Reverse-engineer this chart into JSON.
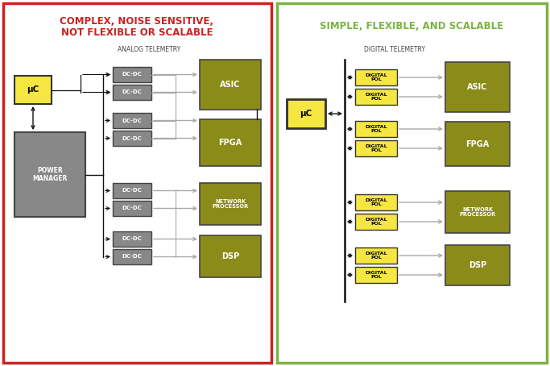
{
  "fig_width": 6.83,
  "fig_height": 4.54,
  "dpi": 100,
  "left_border_color": "#cc2222",
  "right_border_color": "#7cb342",
  "left_title_line1": "COMPLEX, NOISE SENSITIVE,",
  "left_title_line2": "NOT FLEXIBLE OR SCALABLE",
  "right_title": "SIMPLE, FLEXIBLE, AND SCALABLE",
  "left_title_color": "#cc2222",
  "right_title_color": "#7cb342",
  "analog_telemetry_label": "ANALOG TELEMETRY",
  "digital_telemetry_label": "DIGITAL TELEMETRY",
  "uc_color": "#f5e642",
  "uc_border_color": "#333333",
  "dcdc_color": "#888888",
  "dcdc_border_color": "#444444",
  "digital_pol_color": "#f5e642",
  "digital_pol_border_color": "#333333",
  "power_manager_color": "#888888",
  "power_manager_border_color": "#444444",
  "load_color": "#8b8b1a",
  "load_border_color": "#444444",
  "arrow_black": "#111111",
  "arrow_gray": "#aaaaaa",
  "white": "#ffffff",
  "panel_bg": "#ffffff"
}
